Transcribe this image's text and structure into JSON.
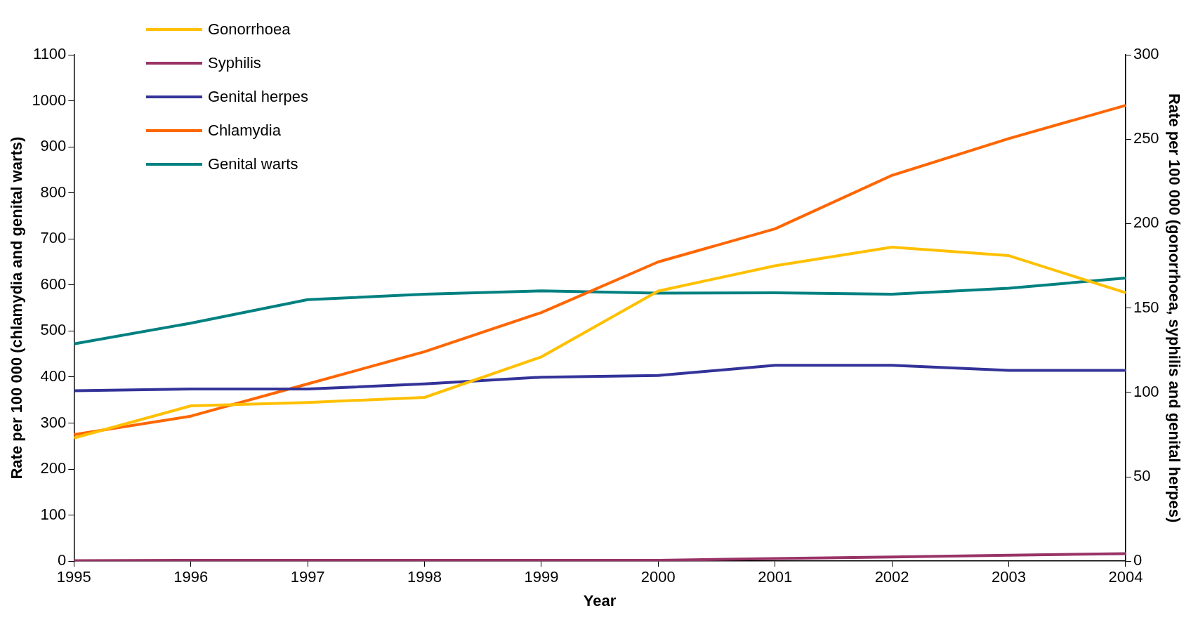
{
  "chart_data": {
    "type": "line",
    "xlabel": "Year",
    "ylabel": "Rate per 100 000 (chlamydia and genital warts)",
    "y2label": "Rate per 100 000 (gonorrhoea, syphilis and genital herpes)",
    "categories": [
      "1995",
      "1996",
      "1997",
      "1998",
      "1999",
      "2000",
      "2001",
      "2002",
      "2003",
      "2004"
    ],
    "series": [
      {
        "name": "Gonorrhoea",
        "color": "#ffc000",
        "axis": "y2",
        "values": [
          73,
          92,
          94,
          97,
          121,
          160,
          175,
          186,
          181,
          159
        ]
      },
      {
        "name": "Syphilis",
        "color": "#993366",
        "axis": "y2",
        "values": [
          0.3,
          0.5,
          0.5,
          0.5,
          0.5,
          0.5,
          1.5,
          2.5,
          3.5,
          4.5
        ]
      },
      {
        "name": "Genital herpes",
        "color": "#333399",
        "axis": "y2",
        "values": [
          101,
          102,
          102,
          105,
          109,
          110,
          116,
          116,
          113,
          113
        ]
      },
      {
        "name": "Chlamydia",
        "color": "#ff6600",
        "values": [
          275,
          315,
          385,
          455,
          540,
          650,
          722,
          838,
          918,
          990
        ]
      },
      {
        "name": "Genital warts",
        "color": "#008080",
        "values": [
          472,
          517,
          568,
          580,
          587,
          582,
          583,
          580,
          593,
          615
        ]
      }
    ],
    "ylim": [
      0,
      1100
    ],
    "yticks": [
      0,
      100,
      200,
      300,
      400,
      500,
      600,
      700,
      800,
      900,
      1000,
      1100
    ],
    "y2lim": [
      0,
      300
    ],
    "y2ticks": [
      0,
      50,
      100,
      150,
      200,
      250,
      300
    ],
    "legend": "top left",
    "grid": false,
    "marker": "none",
    "line_style": "solid"
  }
}
